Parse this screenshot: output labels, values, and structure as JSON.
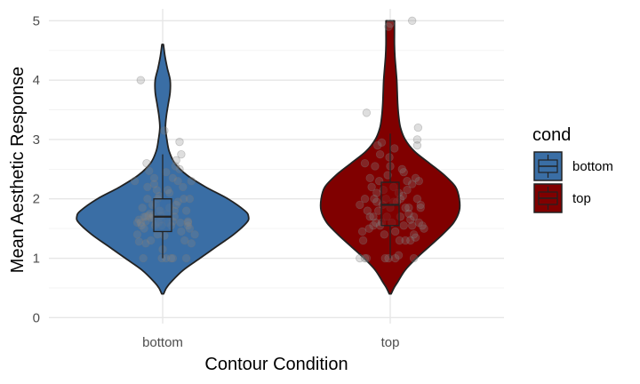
{
  "chart_data": {
    "type": "violin",
    "xlabel": "Contour Condition",
    "ylabel": "Mean Aesthetic Response",
    "categories": [
      "bottom",
      "top"
    ],
    "ylim": [
      -0.1,
      5.2
    ],
    "yticks": [
      0,
      1,
      2,
      3,
      4,
      5
    ],
    "grid": true,
    "legend": {
      "title": "cond",
      "placement": "right",
      "entries": [
        {
          "label": "bottom",
          "color": "#3a6ea5"
        },
        {
          "label": "top",
          "color": "#800000"
        }
      ]
    },
    "series": [
      {
        "category": "bottom",
        "color": "#3a6ea5",
        "violin_range": [
          0.4,
          4.6
        ],
        "density": [
          [
            0.4,
            0.01
          ],
          [
            0.5,
            0.04
          ],
          [
            0.6,
            0.09
          ],
          [
            0.8,
            0.22
          ],
          [
            1.0,
            0.4
          ],
          [
            1.2,
            0.58
          ],
          [
            1.4,
            0.76
          ],
          [
            1.6,
            0.9
          ],
          [
            1.7,
            0.92
          ],
          [
            1.8,
            0.88
          ],
          [
            2.0,
            0.7
          ],
          [
            2.2,
            0.46
          ],
          [
            2.4,
            0.26
          ],
          [
            2.6,
            0.13
          ],
          [
            2.8,
            0.07
          ],
          [
            3.0,
            0.045
          ],
          [
            3.2,
            0.03
          ],
          [
            3.4,
            0.04
          ],
          [
            3.6,
            0.06
          ],
          [
            3.8,
            0.08
          ],
          [
            4.0,
            0.08
          ],
          [
            4.2,
            0.05
          ],
          [
            4.4,
            0.025
          ],
          [
            4.6,
            0.008
          ]
        ],
        "box": {
          "min": 1.0,
          "q1": 1.45,
          "median": 1.7,
          "q3": 2.0,
          "max": 2.75
        },
        "points": [
          [
            -0.33,
            2.3
          ],
          [
            -0.3,
            1.4
          ],
          [
            -0.28,
            1.28
          ],
          [
            -0.26,
            1.6
          ],
          [
            -0.24,
            1.85
          ],
          [
            -0.22,
            1.5
          ],
          [
            -0.2,
            1.7
          ],
          [
            -0.18,
            2.0
          ],
          [
            -0.17,
            1.72
          ],
          [
            -0.16,
            2.47
          ],
          [
            -0.15,
            1.75
          ],
          [
            -0.14,
            1.3
          ],
          [
            -0.12,
            1.9
          ],
          [
            -0.11,
            1.68
          ],
          [
            -0.1,
            2.25
          ],
          [
            -0.09,
            1.55
          ],
          [
            -0.08,
            1.9
          ],
          [
            -0.07,
            2.15
          ],
          [
            -0.06,
            1.4
          ],
          [
            -0.05,
            1.6
          ],
          [
            -0.04,
            2.05
          ],
          [
            -0.03,
            1.8
          ],
          [
            -0.02,
            1.65
          ],
          [
            -0.01,
            1.55
          ],
          [
            0.0,
            1.15
          ],
          [
            0.02,
            1.38
          ],
          [
            0.04,
            2.45
          ],
          [
            0.05,
            1.75
          ],
          [
            0.06,
            2.15
          ],
          [
            0.08,
            1.85
          ],
          [
            0.1,
            1.0
          ],
          [
            0.12,
            1.62
          ],
          [
            0.14,
            1.7
          ],
          [
            0.15,
            2.55
          ],
          [
            0.16,
            1.9
          ],
          [
            0.18,
            1.95
          ],
          [
            0.2,
            2.5
          ],
          [
            0.21,
            1.6
          ],
          [
            0.22,
            1.45
          ],
          [
            0.24,
            2.2
          ],
          [
            0.26,
            1.3
          ],
          [
            0.28,
            1.8
          ],
          [
            0.3,
            1.6
          ],
          [
            0.32,
            1.5
          ],
          [
            0.34,
            1.25
          ],
          [
            -0.2,
            1.62
          ],
          [
            -0.14,
            1.68
          ],
          [
            -0.08,
            1.58
          ],
          [
            -0.02,
            1.72
          ],
          [
            0.06,
            1.6
          ],
          [
            0.14,
            1.8
          ],
          [
            -0.28,
            1.65
          ],
          [
            0.3,
            1.62
          ],
          [
            -0.19,
            2.6
          ],
          [
            -0.06,
            2.0
          ],
          [
            -0.25,
            1.55
          ],
          [
            -0.23,
            1.0
          ],
          [
            -0.2,
            1.25
          ],
          [
            -0.26,
            4.0
          ],
          [
            -0.1,
            2.35
          ],
          [
            0.2,
            2.96
          ],
          [
            0.22,
            2.75
          ],
          [
            0.16,
            2.65
          ],
          [
            0.12,
            1.0
          ],
          [
            0.28,
            1.0
          ],
          [
            0.34,
            2.3
          ],
          [
            0.38,
            1.4
          ],
          [
            0.32,
            2.0
          ],
          [
            -0.01,
            1.0
          ],
          [
            0.04,
            1.0
          ],
          [
            0.1,
            1.55
          ],
          [
            0.18,
            2.3
          ],
          [
            0.25,
            2.0
          ],
          [
            -0.12,
            1.72
          ],
          [
            -0.04,
            1.8
          ],
          [
            -0.18,
            2.2
          ],
          [
            0.08,
            2.1
          ],
          [
            -0.3,
            1.6
          ],
          [
            -0.22,
            1.7
          ],
          [
            0.12,
            2.35
          ],
          [
            0.3,
            1.55
          ],
          [
            0.02,
            3.15
          ]
        ]
      },
      {
        "category": "top",
        "color": "#800000",
        "violin_range": [
          0.4,
          5.0
        ],
        "density": [
          [
            0.4,
            0.01
          ],
          [
            0.5,
            0.04
          ],
          [
            0.6,
            0.08
          ],
          [
            0.8,
            0.16
          ],
          [
            1.0,
            0.28
          ],
          [
            1.2,
            0.42
          ],
          [
            1.4,
            0.56
          ],
          [
            1.6,
            0.68
          ],
          [
            1.8,
            0.74
          ],
          [
            2.0,
            0.74
          ],
          [
            2.2,
            0.7
          ],
          [
            2.4,
            0.58
          ],
          [
            2.6,
            0.42
          ],
          [
            2.8,
            0.26
          ],
          [
            3.0,
            0.16
          ],
          [
            3.2,
            0.11
          ],
          [
            3.4,
            0.09
          ],
          [
            3.6,
            0.08
          ],
          [
            3.8,
            0.075
          ],
          [
            4.0,
            0.07
          ],
          [
            4.2,
            0.06
          ],
          [
            4.4,
            0.05
          ],
          [
            4.6,
            0.045
          ],
          [
            4.8,
            0.045
          ],
          [
            5.0,
            0.045
          ]
        ],
        "box": {
          "min": 1.0,
          "q1": 1.55,
          "median": 1.9,
          "q3": 2.28,
          "max": 3.1
        },
        "points": [
          [
            -0.36,
            1.9
          ],
          [
            -0.33,
            1.45
          ],
          [
            -0.32,
            1.3
          ],
          [
            -0.3,
            2.0
          ],
          [
            -0.3,
            2.6
          ],
          [
            -0.28,
            3.45
          ],
          [
            -0.27,
            1.8
          ],
          [
            -0.25,
            1.5
          ],
          [
            -0.24,
            2.35
          ],
          [
            -0.22,
            2.2
          ],
          [
            -0.2,
            1.7
          ],
          [
            -0.19,
            2.0
          ],
          [
            -0.18,
            2.55
          ],
          [
            -0.17,
            1.6
          ],
          [
            -0.16,
            2.1
          ],
          [
            -0.15,
            2.9
          ],
          [
            -0.14,
            1.8
          ],
          [
            -0.13,
            2.3
          ],
          [
            -0.12,
            1.55
          ],
          [
            -0.1,
            2.95
          ],
          [
            -0.09,
            1.9
          ],
          [
            -0.08,
            2.15
          ],
          [
            -0.07,
            1.4
          ],
          [
            -0.05,
            2.0
          ],
          [
            -0.04,
            1.7
          ],
          [
            -0.03,
            2.4
          ],
          [
            -0.02,
            1.0
          ],
          [
            -0.01,
            2.7
          ],
          [
            0.0,
            1.85
          ],
          [
            0.02,
            1.6
          ],
          [
            0.04,
            2.2
          ],
          [
            0.05,
            2.85
          ],
          [
            0.06,
            1.45
          ],
          [
            0.08,
            1.95
          ],
          [
            0.1,
            2.1
          ],
          [
            0.11,
            1.3
          ],
          [
            0.12,
            1.7
          ],
          [
            0.14,
            2.5
          ],
          [
            0.15,
            2.05
          ],
          [
            0.16,
            1.55
          ],
          [
            0.18,
            1.85
          ],
          [
            0.2,
            2.3
          ],
          [
            0.22,
            1.75
          ],
          [
            0.24,
            1.65
          ],
          [
            0.26,
            2.25
          ],
          [
            0.28,
            1.4
          ],
          [
            0.3,
            2.35
          ],
          [
            0.32,
            2.0
          ],
          [
            0.34,
            1.6
          ],
          [
            0.36,
            1.85
          ],
          [
            0.38,
            1.55
          ],
          [
            0.4,
            1.5
          ],
          [
            -0.36,
            1.0
          ],
          [
            -0.3,
            1.0
          ],
          [
            -0.28,
            1.0
          ],
          [
            0.28,
            1.0
          ],
          [
            0.3,
            1.35
          ],
          [
            0.32,
            2.9
          ],
          [
            0.33,
            3.2
          ],
          [
            0.32,
            3.0
          ],
          [
            0.36,
            1.9
          ],
          [
            0.28,
            1.7
          ],
          [
            0.24,
            1.3
          ],
          [
            0.1,
            1.05
          ],
          [
            0.06,
            1.0
          ],
          [
            -0.2,
            1.55
          ],
          [
            -0.06,
            1.0
          ],
          [
            -0.12,
            2.75
          ],
          [
            0.16,
            2.45
          ],
          [
            0.2,
            2.15
          ],
          [
            0.22,
            1.85
          ],
          [
            0.26,
            1.55
          ],
          [
            -0.24,
            1.7
          ],
          [
            0.0,
            2.55
          ],
          [
            0.04,
            1.95
          ],
          [
            -0.16,
            1.95
          ],
          [
            0.34,
            2.3
          ],
          [
            0.18,
            1.3
          ],
          [
            -0.1,
            1.6
          ],
          [
            0.12,
            2.0
          ],
          [
            0.26,
            5.0
          ],
          [
            0.0,
            4.95
          ],
          [
            -0.02,
            4.9
          ]
        ]
      }
    ]
  }
}
